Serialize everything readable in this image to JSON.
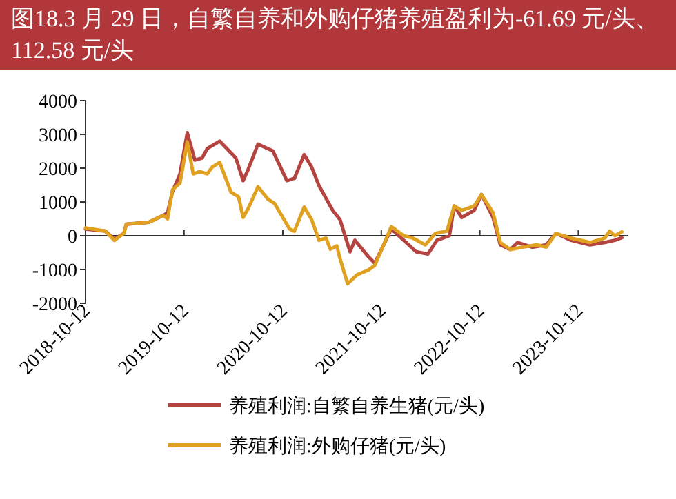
{
  "chart_data": {
    "type": "line",
    "title": "图18.3 月 29 日，自繁自养和外购仔猪养殖盈利为-61.69 元/头、112.58 元/头",
    "xlim": [
      "2018-10-12",
      "2024-04-12"
    ],
    "xticks": [
      "2018-10-12",
      "2019-10-12",
      "2020-10-12",
      "2021-10-12",
      "2022-10-12",
      "2023-10-12"
    ],
    "ylim": [
      -2000,
      4000
    ],
    "yticks": [
      -2000,
      -1000,
      0,
      1000,
      2000,
      3000,
      4000
    ],
    "legend": "bottom",
    "series": [
      {
        "name": "养殖利润:自繁自养生猪(元/头)",
        "color": "#b5433f",
        "x": [
          "2018-10-12",
          "2018-12-24",
          "2019-01-27",
          "2019-03-03",
          "2019-03-12",
          "2019-06-03",
          "2019-07-27",
          "2019-08-12",
          "2019-08-30",
          "2019-09-27",
          "2019-10-24",
          "2019-11-21",
          "2019-12-18",
          "2020-01-06",
          "2020-02-21",
          "2020-04-21",
          "2020-05-18",
          "2020-06-06",
          "2020-07-12",
          "2020-09-05",
          "2020-10-27",
          "2020-11-24",
          "2020-12-30",
          "2021-01-27",
          "2021-02-23",
          "2021-04-15",
          "2021-05-12",
          "2021-06-18",
          "2021-07-06",
          "2021-08-24",
          "2021-09-18",
          "2021-11-18",
          "2022-01-03",
          "2022-02-18",
          "2022-04-03",
          "2022-05-06",
          "2022-06-21",
          "2022-07-09",
          "2022-08-06",
          "2022-09-21",
          "2022-10-18",
          "2022-11-30",
          "2022-12-27",
          "2023-02-02",
          "2023-03-01",
          "2023-04-24",
          "2023-06-15",
          "2023-07-21",
          "2023-09-15",
          "2023-11-24",
          "2024-01-18",
          "2024-02-24",
          "2024-03-21"
        ],
        "values": [
          200,
          140,
          -100,
          70,
          340,
          400,
          600,
          680,
          1300,
          1830,
          3050,
          2240,
          2300,
          2580,
          2800,
          2300,
          1630,
          1970,
          2710,
          2510,
          1630,
          1700,
          2400,
          2030,
          1480,
          750,
          475,
          -475,
          -135,
          -610,
          -815,
          200,
          -135,
          -475,
          -540,
          -135,
          0,
          880,
          540,
          750,
          1220,
          540,
          -270,
          -410,
          -200,
          -340,
          -270,
          70,
          -135,
          -270,
          -200,
          -135,
          -60
        ]
      },
      {
        "name": "养殖利润:外购仔猪(元/头)",
        "color": "#e0a020",
        "x": [
          "2018-10-12",
          "2018-12-24",
          "2019-01-27",
          "2019-03-03",
          "2019-03-12",
          "2019-06-03",
          "2019-07-27",
          "2019-08-12",
          "2019-08-30",
          "2019-09-27",
          "2019-10-24",
          "2019-11-15",
          "2019-12-09",
          "2020-01-06",
          "2020-01-24",
          "2020-02-21",
          "2020-04-03",
          "2020-05-01",
          "2020-05-18",
          "2020-06-06",
          "2020-07-12",
          "2020-08-18",
          "2020-09-12",
          "2020-11-06",
          "2020-11-24",
          "2020-12-30",
          "2021-01-27",
          "2021-02-23",
          "2021-03-21",
          "2021-04-06",
          "2021-04-30",
          "2021-05-12",
          "2021-06-09",
          "2021-07-15",
          "2021-08-24",
          "2021-09-18",
          "2021-11-18",
          "2022-01-03",
          "2022-02-06",
          "2022-03-24",
          "2022-04-30",
          "2022-06-12",
          "2022-07-09",
          "2022-08-06",
          "2022-09-21",
          "2022-10-18",
          "2022-11-30",
          "2022-12-27",
          "2023-02-02",
          "2023-03-18",
          "2023-05-12",
          "2023-06-15",
          "2023-07-21",
          "2023-09-15",
          "2023-11-24",
          "2024-01-18",
          "2024-02-05",
          "2024-02-24",
          "2024-03-21"
        ],
        "values": [
          230,
          140,
          -135,
          70,
          340,
          400,
          600,
          500,
          1360,
          1560,
          2780,
          1830,
          1900,
          1830,
          2030,
          2170,
          1290,
          1150,
          540,
          810,
          1450,
          1080,
          950,
          200,
          135,
          850,
          475,
          -135,
          -70,
          -400,
          -300,
          -680,
          -1420,
          -1150,
          -1020,
          -880,
          270,
          0,
          -70,
          -270,
          70,
          135,
          880,
          750,
          880,
          1220,
          680,
          -200,
          -410,
          -340,
          -270,
          -340,
          70,
          -70,
          -200,
          -70,
          135,
          0,
          113
        ]
      }
    ]
  }
}
